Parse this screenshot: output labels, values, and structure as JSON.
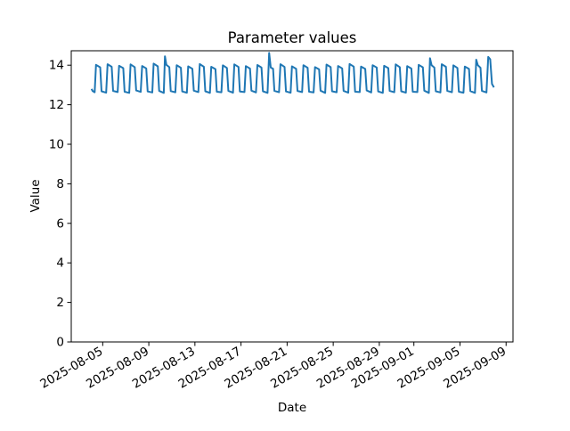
{
  "chart_data": {
    "type": "line",
    "title": "Parameter values",
    "xlabel": "Date",
    "ylabel": "Value",
    "series_name": "Parameter values",
    "series_color": "#1f77b4",
    "background_color": "#ffffff",
    "grid": false,
    "legend": null,
    "x_unit": "days since 2025-08-04",
    "xlim_days": [
      -1.73,
      36.6
    ],
    "ylim": [
      0,
      14.73
    ],
    "y_ticks": [
      0,
      2,
      4,
      6,
      8,
      10,
      12,
      14
    ],
    "x_ticks": [
      {
        "day": 1,
        "label": "2025-08-05"
      },
      {
        "day": 5,
        "label": "2025-08-09"
      },
      {
        "day": 9,
        "label": "2025-08-13"
      },
      {
        "day": 13,
        "label": "2025-08-17"
      },
      {
        "day": 17,
        "label": "2025-08-21"
      },
      {
        "day": 21,
        "label": "2025-08-25"
      },
      {
        "day": 25,
        "label": "2025-08-29"
      },
      {
        "day": 28,
        "label": "2025-09-01"
      },
      {
        "day": 32,
        "label": "2025-09-05"
      },
      {
        "day": 36,
        "label": "2025-09-09"
      }
    ],
    "points": [
      [
        0.03,
        12.8
      ],
      [
        0.12,
        12.7
      ],
      [
        0.3,
        12.63
      ],
      [
        0.42,
        14.02
      ],
      [
        0.78,
        13.89
      ],
      [
        0.9,
        12.68
      ],
      [
        1.3,
        12.61
      ],
      [
        1.42,
        14.05
      ],
      [
        1.78,
        13.92
      ],
      [
        1.9,
        12.7
      ],
      [
        2.3,
        12.64
      ],
      [
        2.42,
        13.97
      ],
      [
        2.78,
        13.85
      ],
      [
        2.9,
        12.66
      ],
      [
        3.3,
        12.6
      ],
      [
        3.42,
        14.04
      ],
      [
        3.78,
        13.9
      ],
      [
        3.9,
        12.72
      ],
      [
        4.3,
        12.65
      ],
      [
        4.42,
        13.96
      ],
      [
        4.78,
        13.84
      ],
      [
        4.9,
        12.67
      ],
      [
        5.3,
        12.62
      ],
      [
        5.42,
        14.08
      ],
      [
        5.78,
        13.94
      ],
      [
        5.9,
        12.7
      ],
      [
        6.3,
        12.6
      ],
      [
        6.4,
        14.45
      ],
      [
        6.52,
        14.02
      ],
      [
        6.78,
        13.9
      ],
      [
        6.9,
        12.69
      ],
      [
        7.3,
        12.63
      ],
      [
        7.42,
        14.0
      ],
      [
        7.78,
        13.87
      ],
      [
        7.9,
        12.67
      ],
      [
        8.3,
        12.61
      ],
      [
        8.42,
        13.94
      ],
      [
        8.78,
        13.82
      ],
      [
        8.9,
        12.71
      ],
      [
        9.3,
        12.64
      ],
      [
        9.42,
        14.06
      ],
      [
        9.78,
        13.92
      ],
      [
        9.9,
        12.68
      ],
      [
        10.3,
        12.6
      ],
      [
        10.42,
        13.92
      ],
      [
        10.78,
        13.8
      ],
      [
        10.9,
        12.66
      ],
      [
        11.3,
        12.63
      ],
      [
        11.42,
        13.99
      ],
      [
        11.78,
        13.86
      ],
      [
        11.9,
        12.7
      ],
      [
        12.3,
        12.61
      ],
      [
        12.42,
        14.04
      ],
      [
        12.78,
        13.91
      ],
      [
        12.9,
        12.67
      ],
      [
        13.3,
        12.64
      ],
      [
        13.42,
        13.95
      ],
      [
        13.78,
        13.83
      ],
      [
        13.9,
        12.71
      ],
      [
        14.3,
        12.62
      ],
      [
        14.42,
        14.01
      ],
      [
        14.78,
        13.88
      ],
      [
        14.9,
        12.68
      ],
      [
        15.3,
        12.6
      ],
      [
        15.44,
        14.62
      ],
      [
        15.58,
        13.88
      ],
      [
        15.78,
        13.82
      ],
      [
        15.9,
        12.7
      ],
      [
        16.3,
        12.63
      ],
      [
        16.42,
        14.05
      ],
      [
        16.78,
        13.91
      ],
      [
        16.9,
        12.67
      ],
      [
        17.3,
        12.61
      ],
      [
        17.42,
        13.94
      ],
      [
        17.78,
        13.82
      ],
      [
        17.9,
        12.7
      ],
      [
        18.3,
        12.64
      ],
      [
        18.42,
        14.0
      ],
      [
        18.78,
        13.87
      ],
      [
        18.9,
        12.66
      ],
      [
        19.3,
        12.62
      ],
      [
        19.42,
        13.9
      ],
      [
        19.78,
        13.79
      ],
      [
        19.9,
        12.71
      ],
      [
        20.3,
        12.6
      ],
      [
        20.42,
        14.03
      ],
      [
        20.78,
        13.9
      ],
      [
        20.9,
        12.68
      ],
      [
        21.3,
        12.63
      ],
      [
        21.42,
        13.96
      ],
      [
        21.78,
        13.84
      ],
      [
        21.9,
        12.7
      ],
      [
        22.3,
        12.61
      ],
      [
        22.42,
        14.06
      ],
      [
        22.78,
        13.93
      ],
      [
        22.9,
        12.66
      ],
      [
        23.3,
        12.64
      ],
      [
        23.42,
        13.93
      ],
      [
        23.78,
        13.81
      ],
      [
        23.9,
        12.72
      ],
      [
        24.3,
        12.62
      ],
      [
        24.42,
        14.0
      ],
      [
        24.78,
        13.88
      ],
      [
        24.9,
        12.67
      ],
      [
        25.3,
        12.6
      ],
      [
        25.42,
        13.97
      ],
      [
        25.78,
        13.85
      ],
      [
        25.9,
        12.7
      ],
      [
        26.3,
        12.63
      ],
      [
        26.42,
        14.04
      ],
      [
        26.78,
        13.9
      ],
      [
        26.9,
        12.68
      ],
      [
        27.3,
        12.61
      ],
      [
        27.42,
        13.95
      ],
      [
        27.78,
        13.83
      ],
      [
        27.9,
        12.66
      ],
      [
        28.3,
        12.64
      ],
      [
        28.42,
        14.02
      ],
      [
        28.78,
        13.89
      ],
      [
        28.9,
        12.71
      ],
      [
        29.3,
        12.6
      ],
      [
        29.4,
        14.35
      ],
      [
        29.54,
        14.0
      ],
      [
        29.78,
        13.88
      ],
      [
        29.9,
        12.68
      ],
      [
        30.3,
        12.62
      ],
      [
        30.42,
        14.05
      ],
      [
        30.78,
        13.92
      ],
      [
        30.9,
        12.7
      ],
      [
        31.3,
        12.63
      ],
      [
        31.42,
        13.99
      ],
      [
        31.78,
        13.86
      ],
      [
        31.9,
        12.66
      ],
      [
        32.3,
        12.61
      ],
      [
        32.42,
        13.93
      ],
      [
        32.78,
        13.81
      ],
      [
        32.9,
        12.69
      ],
      [
        33.3,
        12.6
      ],
      [
        33.41,
        14.28
      ],
      [
        33.55,
        14.0
      ],
      [
        33.78,
        13.87
      ],
      [
        33.9,
        12.7
      ],
      [
        34.3,
        12.62
      ],
      [
        34.45,
        14.42
      ],
      [
        34.62,
        14.3
      ],
      [
        34.78,
        13.05
      ],
      [
        34.95,
        12.88
      ]
    ]
  }
}
